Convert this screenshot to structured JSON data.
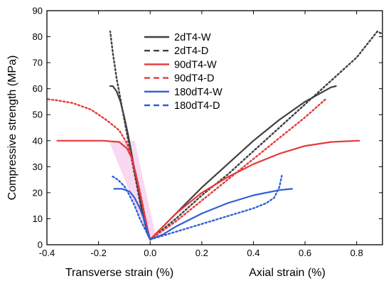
{
  "chart_data": {
    "type": "line",
    "title": "",
    "ylabel": "Compressive strength (MPa)",
    "xlabel_left": "Transverse strain (%)",
    "xlabel_right": "Axial strain (%)",
    "xlim": [
      -0.4,
      0.9
    ],
    "ylim": [
      0,
      90
    ],
    "x_ticks": [
      -0.4,
      -0.2,
      0.0,
      0.2,
      0.4,
      0.6,
      0.8
    ],
    "x_tick_labels": [
      "-0.4",
      "-0.2",
      "0.0",
      "0.2",
      "0.4",
      "0.6",
      "0.8"
    ],
    "y_ticks": [
      0,
      10,
      20,
      30,
      40,
      50,
      60,
      70,
      80,
      90
    ],
    "legend_position": "top-center",
    "series": [
      {
        "name": "2dT4-W",
        "color": "#404040",
        "dash": "solid",
        "transverse": [
          [
            0.0,
            2
          ],
          [
            -0.01,
            4
          ],
          [
            -0.025,
            10
          ],
          [
            -0.04,
            18
          ],
          [
            -0.055,
            26
          ],
          [
            -0.07,
            34
          ],
          [
            -0.085,
            42
          ],
          [
            -0.1,
            49
          ],
          [
            -0.115,
            55
          ],
          [
            -0.13,
            59
          ],
          [
            -0.145,
            61
          ],
          [
            -0.155,
            61
          ]
        ],
        "axial": [
          [
            0.0,
            2
          ],
          [
            0.05,
            7
          ],
          [
            0.1,
            12
          ],
          [
            0.2,
            22
          ],
          [
            0.3,
            31
          ],
          [
            0.4,
            40
          ],
          [
            0.5,
            48
          ],
          [
            0.6,
            55
          ],
          [
            0.7,
            60.5
          ],
          [
            0.72,
            61
          ]
        ]
      },
      {
        "name": "2dT4-D",
        "color": "#404040",
        "dash": "dash",
        "transverse": [
          [
            0.0,
            2
          ],
          [
            -0.015,
            6
          ],
          [
            -0.035,
            14
          ],
          [
            -0.05,
            22
          ],
          [
            -0.07,
            32
          ],
          [
            -0.085,
            40
          ],
          [
            -0.1,
            48
          ],
          [
            -0.115,
            56
          ],
          [
            -0.13,
            64
          ],
          [
            -0.145,
            74
          ],
          [
            -0.155,
            82
          ]
        ],
        "axial": [
          [
            0.0,
            2
          ],
          [
            0.1,
            10
          ],
          [
            0.2,
            19
          ],
          [
            0.3,
            27
          ],
          [
            0.4,
            36
          ],
          [
            0.5,
            45
          ],
          [
            0.6,
            54
          ],
          [
            0.7,
            63
          ],
          [
            0.8,
            72
          ],
          [
            0.88,
            82
          ],
          [
            0.9,
            81
          ]
        ]
      },
      {
        "name": "90dT4-W",
        "color": "#e53a3a",
        "dash": "solid",
        "transverse": [
          [
            0.0,
            2
          ],
          [
            -0.01,
            6
          ],
          [
            -0.025,
            13
          ],
          [
            -0.04,
            20
          ],
          [
            -0.055,
            27
          ],
          [
            -0.07,
            33
          ],
          [
            -0.09,
            37
          ],
          [
            -0.12,
            39.5
          ],
          [
            -0.18,
            40
          ],
          [
            -0.3,
            40
          ],
          [
            -0.36,
            40
          ]
        ],
        "axial": [
          [
            0.0,
            2
          ],
          [
            0.1,
            12
          ],
          [
            0.2,
            20
          ],
          [
            0.3,
            26
          ],
          [
            0.4,
            31
          ],
          [
            0.5,
            35
          ],
          [
            0.6,
            38
          ],
          [
            0.7,
            39.5
          ],
          [
            0.8,
            40
          ],
          [
            0.81,
            40
          ]
        ]
      },
      {
        "name": "90dT4-D",
        "color": "#e53a3a",
        "dash": "dash",
        "transverse": [
          [
            0.0,
            2
          ],
          [
            -0.015,
            8
          ],
          [
            -0.03,
            16
          ],
          [
            -0.05,
            25
          ],
          [
            -0.07,
            33
          ],
          [
            -0.09,
            39
          ],
          [
            -0.12,
            44
          ],
          [
            -0.17,
            48
          ],
          [
            -0.23,
            52
          ],
          [
            -0.3,
            54.5
          ],
          [
            -0.36,
            55.5
          ],
          [
            -0.4,
            56
          ]
        ],
        "axial": [
          [
            0.0,
            2
          ],
          [
            0.1,
            9
          ],
          [
            0.2,
            17
          ],
          [
            0.3,
            25
          ],
          [
            0.4,
            33
          ],
          [
            0.5,
            41
          ],
          [
            0.6,
            49
          ],
          [
            0.68,
            56
          ]
        ]
      },
      {
        "name": "180dT4-W",
        "color": "#2f5fd6",
        "dash": "solid",
        "transverse": [
          [
            0.0,
            2
          ],
          [
            -0.01,
            5
          ],
          [
            -0.025,
            10
          ],
          [
            -0.04,
            14
          ],
          [
            -0.06,
            18
          ],
          [
            -0.08,
            20.5
          ],
          [
            -0.11,
            21.5
          ],
          [
            -0.14,
            21.5
          ]
        ],
        "axial": [
          [
            0.0,
            2
          ],
          [
            0.05,
            4
          ],
          [
            0.1,
            7
          ],
          [
            0.2,
            12
          ],
          [
            0.3,
            16
          ],
          [
            0.4,
            19
          ],
          [
            0.5,
            21
          ],
          [
            0.55,
            21.5
          ]
        ]
      },
      {
        "name": "180dT4-D",
        "color": "#2f5fd6",
        "dash": "dash",
        "transverse": [
          [
            0.0,
            2
          ],
          [
            -0.02,
            6
          ],
          [
            -0.04,
            10
          ],
          [
            -0.06,
            15
          ],
          [
            -0.08,
            19
          ],
          [
            -0.1,
            22.5
          ],
          [
            -0.125,
            25
          ],
          [
            -0.15,
            26.5
          ]
        ],
        "axial": [
          [
            0.0,
            2
          ],
          [
            0.1,
            5
          ],
          [
            0.2,
            8
          ],
          [
            0.3,
            11
          ],
          [
            0.4,
            14
          ],
          [
            0.45,
            16
          ],
          [
            0.48,
            18
          ],
          [
            0.5,
            22
          ],
          [
            0.51,
            26.5
          ]
        ]
      }
    ]
  }
}
